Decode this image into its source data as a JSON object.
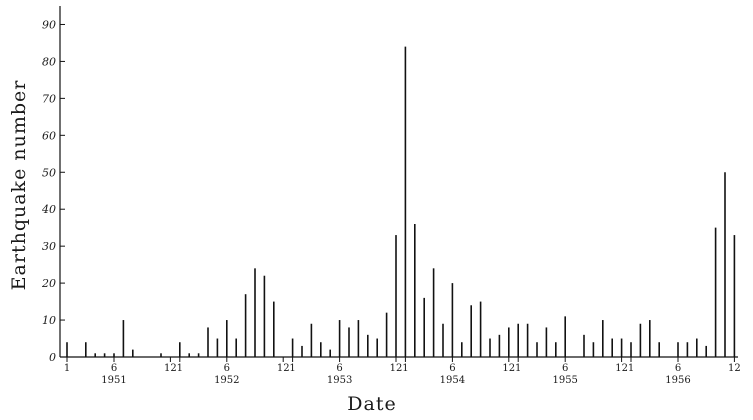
{
  "chart_data": {
    "type": "bar",
    "title": "",
    "xlabel": "Date",
    "ylabel": "Earthquake number",
    "ylim": [
      0,
      95
    ],
    "yticks": [
      0,
      10,
      20,
      30,
      40,
      50,
      60,
      70,
      80,
      90
    ],
    "grid": false,
    "start": "1951-01",
    "month_tick_labels": [
      {
        "month": 1,
        "label": "1"
      },
      {
        "month": 6,
        "label": "6"
      },
      {
        "month": 12,
        "label": "12"
      },
      {
        "month": 13,
        "label": "1"
      },
      {
        "month": 18,
        "label": "6"
      },
      {
        "month": 24,
        "label": "12"
      },
      {
        "month": 25,
        "label": "1"
      },
      {
        "month": 30,
        "label": "6"
      },
      {
        "month": 36,
        "label": "12"
      },
      {
        "month": 37,
        "label": "1"
      },
      {
        "month": 42,
        "label": "6"
      },
      {
        "month": 48,
        "label": "12"
      },
      {
        "month": 49,
        "label": "1"
      },
      {
        "month": 54,
        "label": "6"
      },
      {
        "month": 60,
        "label": "12"
      },
      {
        "month": 61,
        "label": "1"
      },
      {
        "month": 66,
        "label": "6"
      },
      {
        "month": 72,
        "label": "12"
      }
    ],
    "year_labels": [
      {
        "month": 6,
        "label": "1951"
      },
      {
        "month": 18,
        "label": "1952"
      },
      {
        "month": 30,
        "label": "1953"
      },
      {
        "month": 42,
        "label": "1954"
      },
      {
        "month": 54,
        "label": "1955"
      },
      {
        "month": 66,
        "label": "1956"
      }
    ],
    "x": [
      "1951-01",
      "1951-02",
      "1951-03",
      "1951-04",
      "1951-05",
      "1951-06",
      "1951-07",
      "1951-08",
      "1951-09",
      "1951-10",
      "1951-11",
      "1951-12",
      "1952-01",
      "1952-02",
      "1952-03",
      "1952-04",
      "1952-05",
      "1952-06",
      "1952-07",
      "1952-08",
      "1952-09",
      "1952-10",
      "1952-11",
      "1952-12",
      "1953-01",
      "1953-02",
      "1953-03",
      "1953-04",
      "1953-05",
      "1953-06",
      "1953-07",
      "1953-08",
      "1953-09",
      "1953-10",
      "1953-11",
      "1953-12",
      "1954-01",
      "1954-02",
      "1954-03",
      "1954-04",
      "1954-05",
      "1954-06",
      "1954-07",
      "1954-08",
      "1954-09",
      "1954-10",
      "1954-11",
      "1954-12",
      "1955-01",
      "1955-02",
      "1955-03",
      "1955-04",
      "1955-05",
      "1955-06",
      "1955-07",
      "1955-08",
      "1955-09",
      "1955-10",
      "1955-11",
      "1955-12",
      "1956-01",
      "1956-02",
      "1956-03",
      "1956-04",
      "1956-05",
      "1956-06",
      "1956-07",
      "1956-08",
      "1956-09",
      "1956-10",
      "1956-11",
      "1956-12"
    ],
    "values": [
      4,
      0,
      4,
      1,
      1,
      1,
      10,
      2,
      0,
      0,
      1,
      0,
      4,
      1,
      1,
      8,
      5,
      10,
      5,
      17,
      24,
      22,
      15,
      0,
      5,
      3,
      9,
      4,
      2,
      10,
      8,
      10,
      6,
      5,
      12,
      33,
      84,
      36,
      16,
      24,
      9,
      20,
      4,
      14,
      15,
      5,
      6,
      8,
      9,
      9,
      4,
      8,
      4,
      11,
      0,
      6,
      4,
      10,
      5,
      5,
      4,
      9,
      10,
      4,
      0,
      4,
      4,
      5,
      3,
      35,
      50,
      33
    ]
  }
}
